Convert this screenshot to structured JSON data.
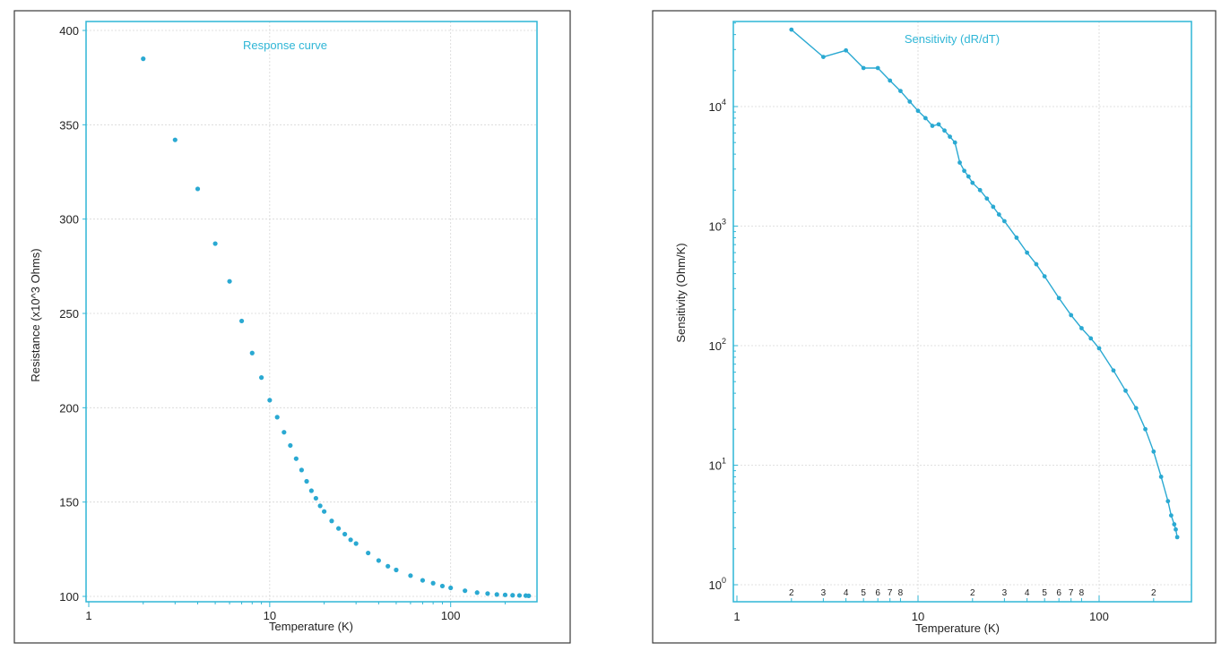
{
  "chart_data": [
    {
      "type": "scatter",
      "title": "Response curve",
      "xlabel": "Temperature (K)",
      "ylabel": "Resistance (x10^3 Ohms)",
      "xscale": "log",
      "xlim": [
        1,
        300
      ],
      "ylim": [
        100,
        400
      ],
      "xticks": [
        1,
        10,
        100
      ],
      "xtick_labels": [
        "1",
        "10",
        "100"
      ],
      "yticks": [
        100,
        150,
        200,
        250,
        300,
        350,
        400
      ],
      "ytick_labels": [
        "100",
        "150",
        "200",
        "250",
        "300",
        "350",
        "400"
      ],
      "x": [
        2,
        3,
        4,
        5,
        6,
        7,
        8,
        9,
        10,
        11,
        12,
        13,
        14,
        15,
        16,
        17,
        18,
        19,
        20,
        22,
        24,
        26,
        28,
        30,
        35,
        40,
        45,
        50,
        60,
        70,
        80,
        90,
        100,
        120,
        140,
        160,
        180,
        200,
        220,
        240,
        260,
        270
      ],
      "y": [
        385,
        342,
        316,
        287,
        267,
        246,
        229,
        216,
        204,
        195,
        187,
        180,
        173,
        167,
        161,
        156,
        152,
        148,
        145,
        140,
        136,
        133,
        130,
        128,
        123,
        119,
        116,
        114,
        111,
        108.5,
        107,
        105.5,
        104.5,
        103,
        102,
        101.5,
        101,
        100.8,
        100.6,
        100.5,
        100.4,
        100.3
      ]
    },
    {
      "type": "line",
      "title": "Sensitivity (dR/dT)",
      "xlabel": "Temperature (K)",
      "ylabel": "Sensitivity (Ohm/K)",
      "xscale": "log",
      "yscale": "log",
      "xlim": [
        1,
        300
      ],
      "ylim": [
        1,
        50000
      ],
      "major_xticks": [
        1,
        10,
        100
      ],
      "major_xtick_labels": [
        "1",
        "10",
        "100"
      ],
      "minor_xticks": [
        2,
        3,
        4,
        5,
        6,
        7,
        8,
        20,
        30,
        40,
        50,
        60,
        70,
        80,
        200
      ],
      "minor_xtick_labels": [
        "2",
        "3",
        "4",
        "5",
        "6",
        "7",
        "8",
        "2",
        "3",
        "4",
        "5",
        "6",
        "7",
        "8",
        "2"
      ],
      "yticks": [
        1,
        10,
        100,
        1000,
        10000
      ],
      "ytick_labels": [
        [
          "10",
          "0"
        ],
        [
          "10",
          "1"
        ],
        [
          "10",
          "2"
        ],
        [
          "10",
          "3"
        ],
        [
          "10",
          "4"
        ]
      ],
      "x": [
        2,
        3,
        4,
        5,
        6,
        7,
        8,
        9,
        10,
        11,
        12,
        13,
        14,
        15,
        16,
        17,
        18,
        19,
        20,
        22,
        24,
        26,
        28,
        30,
        35,
        40,
        45,
        50,
        60,
        70,
        80,
        90,
        100,
        120,
        140,
        160,
        180,
        200,
        220,
        240,
        250,
        260,
        265,
        270
      ],
      "y": [
        44000,
        26000,
        29500,
        21000,
        21000,
        16500,
        13500,
        11000,
        9200,
        8000,
        6900,
        7100,
        6300,
        5600,
        5000,
        3400,
        2900,
        2600,
        2300,
        2000,
        1700,
        1450,
        1250,
        1100,
        800,
        600,
        480,
        380,
        250,
        180,
        140,
        115,
        95,
        62,
        42,
        30,
        20,
        13,
        8,
        5,
        3.8,
        3.2,
        2.9,
        2.5
      ]
    }
  ]
}
